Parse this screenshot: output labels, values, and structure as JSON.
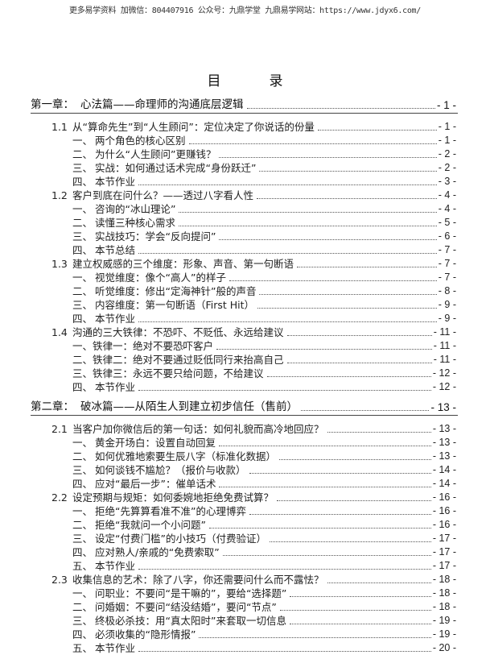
{
  "header_text": "更多易学资料 加微信：804407916 公众号：九鼎学堂 九鼎易学网站：https://www.jdyx6.com/",
  "title": [
    "目",
    "录"
  ],
  "toc": [
    {
      "level": "chapter",
      "num": "第一章：",
      "text": "心法篇——命理师的沟通底层逻辑",
      "page": "- 1 -"
    },
    {
      "level": "section",
      "num": "1.1",
      "text": "从“算命先生”到“人生顾问”：定位决定了你说话的份量",
      "page": "- 1 -"
    },
    {
      "level": "item",
      "num": "一、",
      "text": "两个角色的核心区别",
      "page": "- 1 -"
    },
    {
      "level": "item",
      "num": "二、",
      "text": "为什么“人生顾问”更赚钱？",
      "page": "- 2 -"
    },
    {
      "level": "item",
      "num": "三、",
      "text": "实战：如何通过话术完成“身份跃迁”",
      "page": "- 2 -"
    },
    {
      "level": "item",
      "num": "四、",
      "text": "本节作业",
      "page": "- 3 -"
    },
    {
      "level": "section",
      "num": "1.2",
      "text": "客户到底在问什么？——透过八字看人性",
      "page": "- 4 -"
    },
    {
      "level": "item",
      "num": "一、",
      "text": "咨询的“冰山理论”",
      "page": "- 4 -"
    },
    {
      "level": "item",
      "num": "二、",
      "text": "读懂三种核心需求",
      "page": "- 5 -"
    },
    {
      "level": "item",
      "num": "三、",
      "text": "实战技巧：学会“反向提问”",
      "page": "- 6 -"
    },
    {
      "level": "item",
      "num": "四、",
      "text": "本节总结",
      "page": "- 7 -"
    },
    {
      "level": "section",
      "num": "1.3",
      "text": "建立权威感的三个维度：形象、声音、第一句断语",
      "page": "- 7 -"
    },
    {
      "level": "item",
      "num": "一、",
      "text": "视觉维度：像个“高人”的样子",
      "page": "- 7 -"
    },
    {
      "level": "item",
      "num": "二、",
      "text": "听觉维度：修出“定海神针”般的声音",
      "page": "- 8 -"
    },
    {
      "level": "item",
      "num": "三、",
      "text": "内容维度：第一句断语（First Hit）",
      "page": "- 9 -"
    },
    {
      "level": "item",
      "num": "四、",
      "text": "本节作业",
      "page": "- 9 -"
    },
    {
      "level": "section",
      "num": "1.4",
      "text": "沟通的三大铁律：不恐吓、不贬低、永远给建议",
      "page": "- 11 -"
    },
    {
      "level": "item2",
      "num": "一、",
      "text": "铁律一：绝对不要恐吓客户",
      "page": "- 11 -"
    },
    {
      "level": "item2",
      "num": "二、",
      "text": "铁律二：绝对不要通过贬低同行来抬高自己",
      "page": "- 11 -"
    },
    {
      "level": "item2",
      "num": "三、",
      "text": "铁律三：永远不要只给问题，不给建议",
      "page": "- 12 -"
    },
    {
      "level": "item",
      "num": "四、",
      "text": "本节作业",
      "page": "- 12 -"
    },
    {
      "level": "chapter",
      "num": "第二章：",
      "text": "破冰篇——从陌生人到建立初步信任（售前）",
      "page": "- 13 -"
    },
    {
      "level": "section",
      "num": "2.1",
      "text": "当客户加你微信后的第一句话：如何礼貌而高冷地回应？",
      "page": "- 13 -"
    },
    {
      "level": "item",
      "num": "一、",
      "text": "黄金开场白：设置自动回复",
      "page": "- 13 -"
    },
    {
      "level": "item",
      "num": "二、",
      "text": "如何优雅地索要生辰八字（标准化数据）",
      "page": "- 13 -"
    },
    {
      "level": "item",
      "num": "三、",
      "text": "如何谈钱不尴尬？（报价与收款）",
      "page": "- 14 -"
    },
    {
      "level": "item",
      "num": "四、",
      "text": "应对“最后一步”：催单话术",
      "page": "- 14 -"
    },
    {
      "level": "section",
      "num": "2.2",
      "text": "设定预期与规矩：如何委婉地拒绝免费试算？",
      "page": "- 16 -"
    },
    {
      "level": "item",
      "num": "一、",
      "text": "拒绝“先算算看准不准”的心理博弈",
      "page": "- 16 -"
    },
    {
      "level": "item",
      "num": "二、",
      "text": "拒绝“我就问一个小问题”",
      "page": "- 16 -"
    },
    {
      "level": "item",
      "num": "三、",
      "text": "设定“付费门槛”的小技巧（付费验证）",
      "page": "- 17 -"
    },
    {
      "level": "item",
      "num": "四、",
      "text": "应对熟人/亲戚的“免费索取”",
      "page": "- 17 -"
    },
    {
      "level": "item",
      "num": "五、",
      "text": "本节作业",
      "page": "- 17 -"
    },
    {
      "level": "section",
      "num": "2.3",
      "text": "收集信息的艺术：除了八字，你还需要问什么而不露怯？",
      "page": "- 18 -"
    },
    {
      "level": "item",
      "num": "一、",
      "text": "问职业：不要问“是干嘛的”，要给“选择题”",
      "page": "- 18 -"
    },
    {
      "level": "item",
      "num": "二、",
      "text": "问婚姻：不要问“结没结婚”，要问“节点”",
      "page": "- 18 -"
    },
    {
      "level": "item",
      "num": "三、",
      "text": "终极必杀技：用“真太阳时”来套取一切信息",
      "page": "- 19 -"
    },
    {
      "level": "item",
      "num": "四、",
      "text": "必须收集的“隐形情报”",
      "page": "- 19 -"
    },
    {
      "level": "item",
      "num": "五、",
      "text": "本节作业",
      "page": "- 20 -"
    }
  ]
}
